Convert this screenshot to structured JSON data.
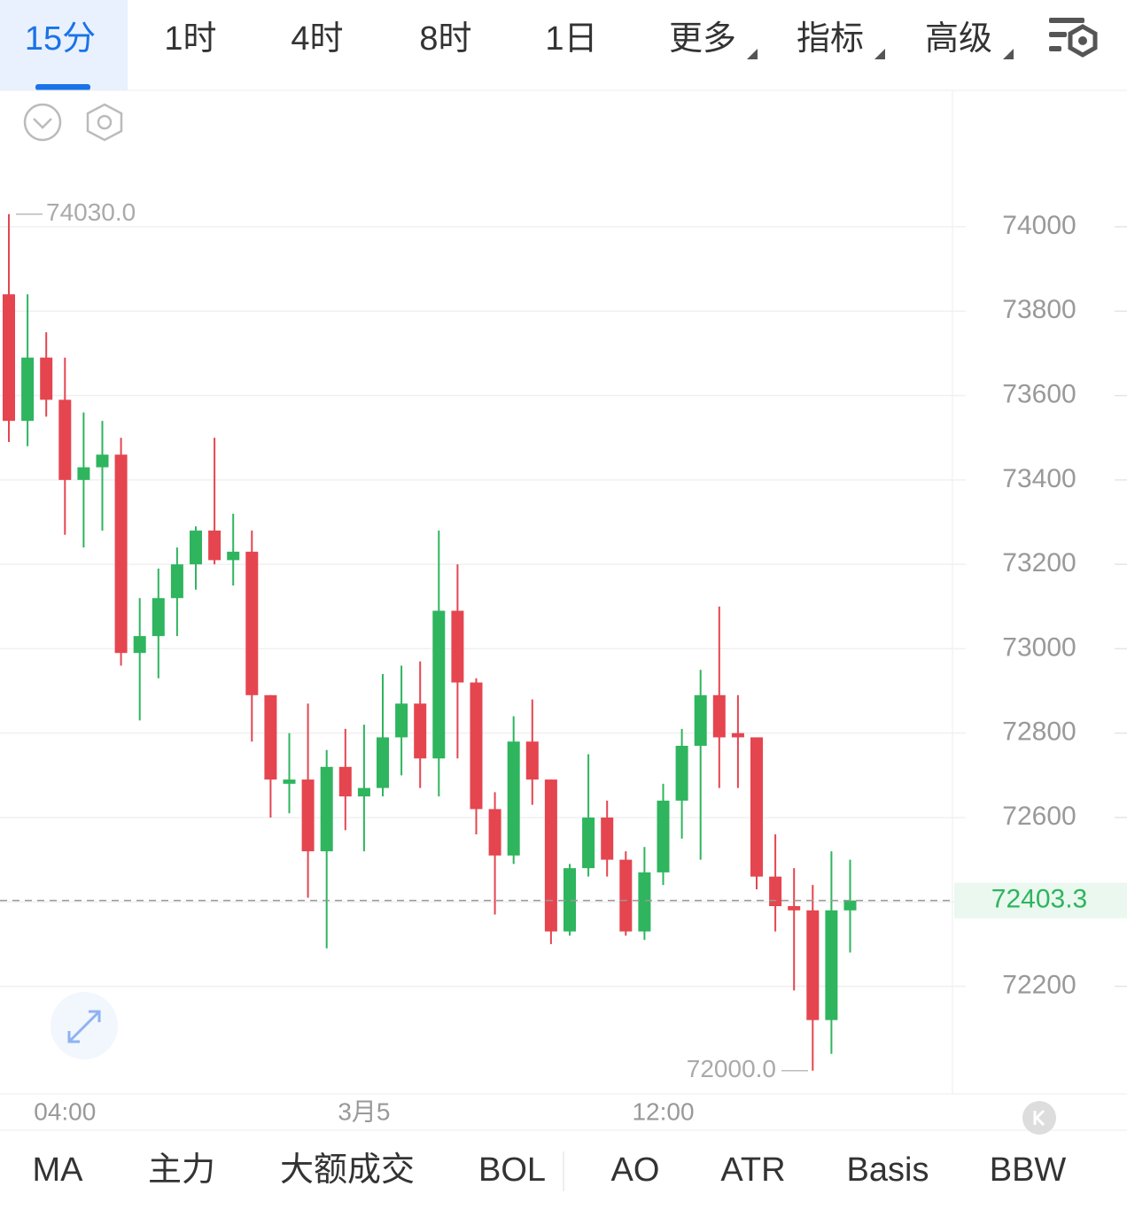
{
  "tabs": [
    "15分",
    "1时",
    "4时",
    "8时",
    "1日",
    "更多",
    "指标",
    "高级"
  ],
  "indicators": [
    "MA",
    "主力",
    "大额成交",
    "BOL",
    "AO",
    "ATR",
    "Basis",
    "BBW"
  ],
  "chart_data": {
    "type": "candlestick",
    "categories": [
      null,
      null,
      null,
      "04:00",
      null,
      null,
      null,
      null,
      null,
      null,
      null,
      null,
      null,
      null,
      null,
      null,
      null,
      null,
      null,
      "3月5",
      null,
      null,
      null,
      null,
      null,
      null,
      null,
      null,
      null,
      null,
      null,
      null,
      null,
      null,
      null,
      "12:00",
      null,
      null,
      null,
      null,
      null,
      null,
      null,
      null,
      null,
      null
    ],
    "open": [
      73840,
      73540,
      73690,
      73590,
      73400,
      73430,
      73460,
      72990,
      73030,
      73120,
      73200,
      73280,
      73210,
      73230,
      72890,
      72680,
      72690,
      72520,
      72720,
      72650,
      72670,
      72790,
      72870,
      72740,
      73090,
      72920,
      72620,
      72510,
      72780,
      72690,
      72330,
      72480,
      72600,
      72500,
      72330,
      72470,
      72640,
      72770,
      72890,
      72800,
      72790,
      72460,
      72390,
      72380,
      72120,
      72380
    ],
    "high": [
      74030,
      73840,
      73750,
      73690,
      73560,
      73540,
      73500,
      73120,
      73190,
      73240,
      73290,
      73500,
      73320,
      73280,
      72890,
      72800,
      72870,
      72760,
      72810,
      72820,
      72940,
      72960,
      72970,
      73280,
      73200,
      72930,
      72660,
      72840,
      72880,
      72690,
      72490,
      72750,
      72640,
      72520,
      72530,
      72680,
      72810,
      72950,
      73100,
      72890,
      72790,
      72560,
      72480,
      72440,
      72520,
      72500
    ],
    "low": [
      73490,
      73480,
      73550,
      73270,
      73240,
      73280,
      72960,
      72830,
      72930,
      73030,
      73140,
      73200,
      73150,
      72780,
      72600,
      72610,
      72410,
      72290,
      72570,
      72520,
      72650,
      72700,
      72670,
      72650,
      72740,
      72560,
      72370,
      72490,
      72630,
      72300,
      72320,
      72460,
      72460,
      72320,
      72310,
      72440,
      72550,
      72500,
      72670,
      72670,
      72430,
      72330,
      72190,
      72000,
      72040,
      72280
    ],
    "close": [
      73540,
      73690,
      73590,
      73400,
      73430,
      73460,
      72990,
      73030,
      73120,
      73200,
      73280,
      73210,
      73230,
      72890,
      72690,
      72690,
      72520,
      72720,
      72650,
      72670,
      72790,
      72870,
      72740,
      73090,
      72920,
      72620,
      72510,
      72780,
      72690,
      72330,
      72480,
      72600,
      72500,
      72330,
      72470,
      72640,
      72770,
      72890,
      72790,
      72790,
      72460,
      72390,
      72380,
      72120,
      72380,
      72403.3
    ],
    "up_color": "#2eb55e",
    "down_color": "#e5454f",
    "ylim": [
      71945,
      74317
    ],
    "yticks": [
      72200,
      72400,
      72600,
      72800,
      73000,
      73200,
      73400,
      73600,
      73800,
      74000
    ],
    "grid": true,
    "last_price": 72403.3,
    "high_label": {
      "value": 74030,
      "label": "74030.0"
    },
    "low_label": {
      "value": 72000,
      "label": "72000.0"
    }
  }
}
